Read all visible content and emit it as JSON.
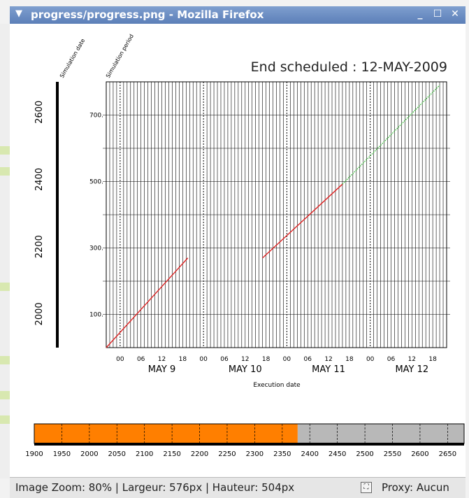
{
  "window": {
    "title": "progress/progress.png - Mozilla Firefox",
    "menu_glyph": "▼",
    "minimize_glyph": "_",
    "maximize_glyph": "☐",
    "close_glyph": "✕"
  },
  "figure": {
    "end_label": "End scheduled : 12-MAY-2009",
    "sim_date_label": "Simulation date",
    "sim_period_label": "Simulation period",
    "xlabel": "Execution date",
    "left_scale_ticks": [
      "2600",
      "2400",
      "2200",
      "2000"
    ],
    "day_labels": [
      "MAY  9",
      "MAY 10",
      "MAY 11",
      "MAY 12"
    ],
    "hour_labels": [
      "00",
      "06",
      "12",
      "18"
    ]
  },
  "chart_data": {
    "type": "line",
    "xlabel": "Execution date",
    "x_axis": {
      "start": "2009-05-08 20:00",
      "end": "2009-05-12 22:00",
      "day_labels": [
        "MAY  9",
        "MAY 10",
        "MAY 11",
        "MAY 12"
      ],
      "hour_ticks": [
        "00",
        "06",
        "12",
        "18"
      ]
    },
    "ylim": [
      0,
      800
    ],
    "yticks": [
      100,
      300,
      500,
      700
    ],
    "ytick_labels": [
      "100.",
      "300.",
      "500.",
      "700."
    ],
    "series": [
      {
        "color": "#dd2222",
        "style": "solid",
        "points": [
          [
            "2009-05-08 20:00",
            0
          ],
          [
            "2009-05-09 19:30",
            270
          ]
        ]
      },
      {
        "color": "#dd2222",
        "style": "solid",
        "points": [
          [
            "2009-05-10 17:00",
            270
          ],
          [
            "2009-05-11 16:00",
            492
          ]
        ]
      },
      {
        "color": "#33bb33",
        "style": "dotted",
        "points": [
          [
            "2009-05-11 16:00",
            492
          ],
          [
            "2009-05-12 20:00",
            790
          ]
        ]
      }
    ]
  },
  "progress_bar": {
    "range": [
      1900,
      2680
    ],
    "completed_until": 2378,
    "ticks": [
      1900,
      1950,
      2000,
      2050,
      2100,
      2150,
      2200,
      2250,
      2300,
      2350,
      2400,
      2450,
      2500,
      2550,
      2600,
      2650
    ],
    "completed_color": "#ff7f00",
    "remaining_color": "#b8b8b8"
  },
  "status": {
    "zoom": "Image Zoom: 80% | Largeur: 576px | Hauteur: 504px",
    "proxy": "Proxy: Aucun",
    "proxy_icon": "proxy-icon"
  }
}
